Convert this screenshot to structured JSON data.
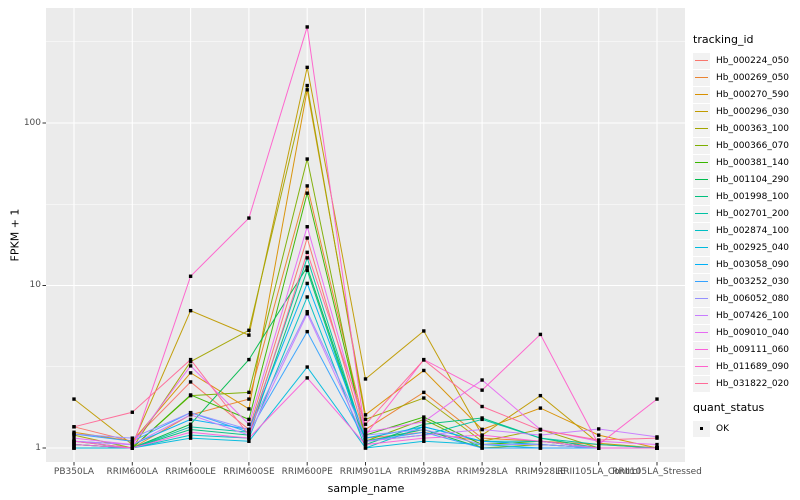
{
  "chart_data": {
    "type": "line",
    "title": "",
    "x_axis": {
      "label": "sample_name",
      "categories": [
        "PB350LA",
        "RRIM600LA",
        "RRIM600LE",
        "RRIM600SE",
        "RRIM600PE",
        "RRIM901LA",
        "RRIM928BA",
        "RRIM928LA",
        "RRIM928LE",
        "RRII105LA_Control",
        "RRII105LA_Stressed"
      ]
    },
    "y_axis": {
      "label": "FPKM + 1",
      "scale": "log10",
      "ticks": [
        1,
        10,
        100
      ],
      "tick_labels": [
        "1",
        "10",
        "100"
      ],
      "minor_ticks": [
        3.1623,
        31.623,
        316.23
      ],
      "range": [
        1,
        500
      ]
    },
    "legend": {
      "title": "tracking_id",
      "position": "right"
    },
    "point_legend": {
      "title": "quant_status",
      "items": [
        "OK"
      ]
    },
    "style": {
      "panel_bg": "#EBEBEB",
      "grid_color": "#FFFFFF",
      "tick_color": "#333333",
      "point_color": "#000000",
      "point_size": 3.4,
      "line_width": 1
    },
    "series": [
      {
        "name": "Hb_000224_050",
        "color": "#F8766D",
        "values": [
          1.35,
          1.1,
          2.55,
          1.3,
          19.6,
          1.15,
          1.25,
          1.1,
          1.05,
          1.0,
          1.0
        ]
      },
      {
        "name": "Hb_000269_050",
        "color": "#EA8331",
        "values": [
          1.05,
          1.0,
          1.6,
          2.0,
          41,
          1.3,
          2.2,
          1.15,
          1.1,
          1.05,
          1.0
        ]
      },
      {
        "name": "Hb_000270_590",
        "color": "#D89000",
        "values": [
          1.25,
          1.1,
          2.9,
          1.74,
          160,
          1.6,
          3.0,
          1.3,
          1.76,
          1.2,
          1.0
        ]
      },
      {
        "name": "Hb_000296_030",
        "color": "#C09B00",
        "values": [
          2.0,
          1.05,
          7.0,
          4.95,
          220,
          2.66,
          5.25,
          1.2,
          2.1,
          1.07,
          1.0
        ]
      },
      {
        "name": "Hb_000363_100",
        "color": "#A3A500",
        "values": [
          1.2,
          1.0,
          3.4,
          5.3,
          170,
          1.5,
          2.03,
          1.1,
          1.3,
          1.0,
          1.0
        ]
      },
      {
        "name": "Hb_000366_070",
        "color": "#7CAE00",
        "values": [
          1.0,
          1.0,
          2.1,
          2.2,
          60,
          1.1,
          1.5,
          1.0,
          1.05,
          1.0,
          1.0
        ]
      },
      {
        "name": "Hb_000381_140",
        "color": "#39B600",
        "values": [
          1.1,
          1.0,
          2.12,
          1.5,
          37,
          1.2,
          1.55,
          1.05,
          1.1,
          1.0,
          1.0
        ]
      },
      {
        "name": "Hb_001104_290",
        "color": "#00BB4E",
        "values": [
          1.05,
          1.0,
          1.4,
          3.5,
          13,
          1.1,
          1.3,
          1.0,
          1.0,
          1.0,
          1.0
        ]
      },
      {
        "name": "Hb_001998_100",
        "color": "#00BF7D",
        "values": [
          1.0,
          1.0,
          1.3,
          1.2,
          12.4,
          1.05,
          1.4,
          1.53,
          1.15,
          1.0,
          1.0
        ]
      },
      {
        "name": "Hb_002701_200",
        "color": "#00C1A3",
        "values": [
          1.05,
          1.0,
          1.35,
          1.25,
          14.8,
          1.1,
          1.2,
          1.5,
          1.15,
          1.05,
          1.0
        ]
      },
      {
        "name": "Hb_002874_100",
        "color": "#00BFC4",
        "values": [
          1.0,
          1.0,
          1.2,
          1.15,
          8.5,
          1.0,
          1.35,
          1.1,
          1.1,
          1.0,
          1.0
        ]
      },
      {
        "name": "Hb_002925_040",
        "color": "#00BADE",
        "values": [
          1.0,
          1.0,
          1.15,
          1.1,
          3.15,
          1.0,
          1.1,
          1.05,
          1.0,
          1.0,
          1.0
        ]
      },
      {
        "name": "Hb_003058_090",
        "color": "#00B0F6",
        "values": [
          1.1,
          1.05,
          1.5,
          1.3,
          10.3,
          1.15,
          1.35,
          1.1,
          1.05,
          1.0,
          1.0
        ]
      },
      {
        "name": "Hb_003252_030",
        "color": "#35A2FF",
        "values": [
          1.22,
          1.1,
          1.65,
          1.25,
          5.2,
          1.1,
          1.25,
          1.0,
          1.0,
          1.0,
          1.0
        ]
      },
      {
        "name": "Hb_006052_080",
        "color": "#9590FF",
        "values": [
          1.22,
          1.15,
          1.65,
          1.3,
          6.9,
          1.2,
          1.3,
          1.05,
          1.05,
          1.0,
          1.0
        ]
      },
      {
        "name": "Hb_007426_100",
        "color": "#C77CFF",
        "values": [
          1.1,
          1.05,
          1.6,
          1.2,
          6.7,
          1.1,
          1.2,
          1.3,
          1.2,
          1.31,
          1.17
        ]
      },
      {
        "name": "Hb_009010_040",
        "color": "#E76BF3",
        "values": [
          1.15,
          1.05,
          3.2,
          1.4,
          23,
          1.25,
          1.45,
          2.62,
          1.3,
          1.1,
          1.05
        ]
      },
      {
        "name": "Hb_009111_060",
        "color": "#FA62DB",
        "values": [
          1.05,
          1.0,
          1.25,
          1.15,
          2.7,
          1.05,
          1.15,
          1.2,
          1.1,
          1.0,
          1.0
        ]
      },
      {
        "name": "Hb_011689_090",
        "color": "#FF61CC",
        "values": [
          1.1,
          1.0,
          11.4,
          26,
          390,
          1.2,
          3.5,
          2.27,
          5.0,
          1.05,
          2.0
        ]
      },
      {
        "name": "Hb_031822_020",
        "color": "#FF6A98",
        "values": [
          1.35,
          1.66,
          3.5,
          1.2,
          16,
          1.4,
          3.48,
          1.8,
          1.29,
          1.12,
          1.15
        ]
      }
    ]
  }
}
